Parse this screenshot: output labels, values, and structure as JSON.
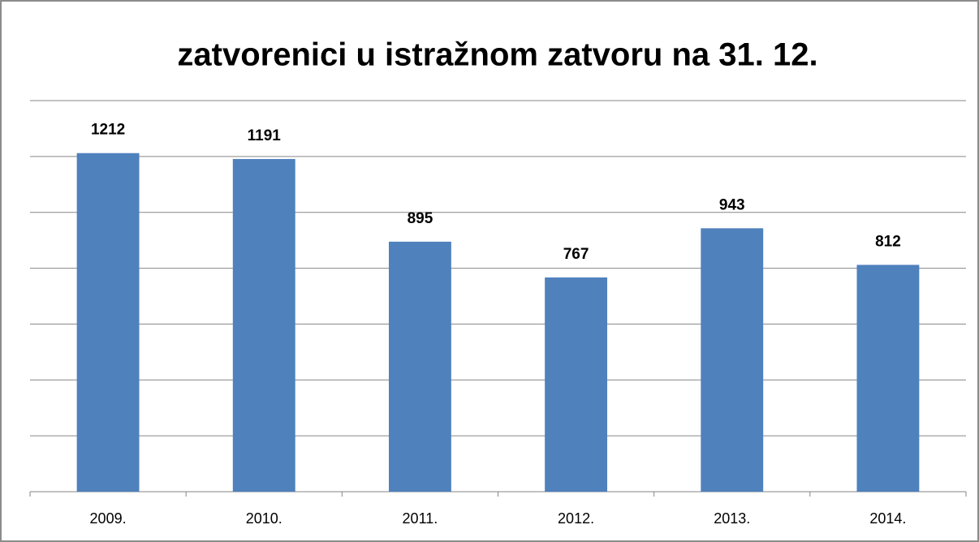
{
  "chart_data": {
    "type": "bar",
    "title": "zatvorenici u istražnom zatvoru na 31. 12.",
    "categories": [
      "2009.",
      "2010.",
      "2011.",
      "2012.",
      "2013.",
      "2014."
    ],
    "values": [
      1212,
      1191,
      895,
      767,
      943,
      812
    ],
    "color": "#4f81bd",
    "ylim": [
      0,
      1400
    ],
    "yticks": [
      0,
      200,
      400,
      600,
      800,
      1000,
      1200,
      1400
    ],
    "grid": true
  }
}
